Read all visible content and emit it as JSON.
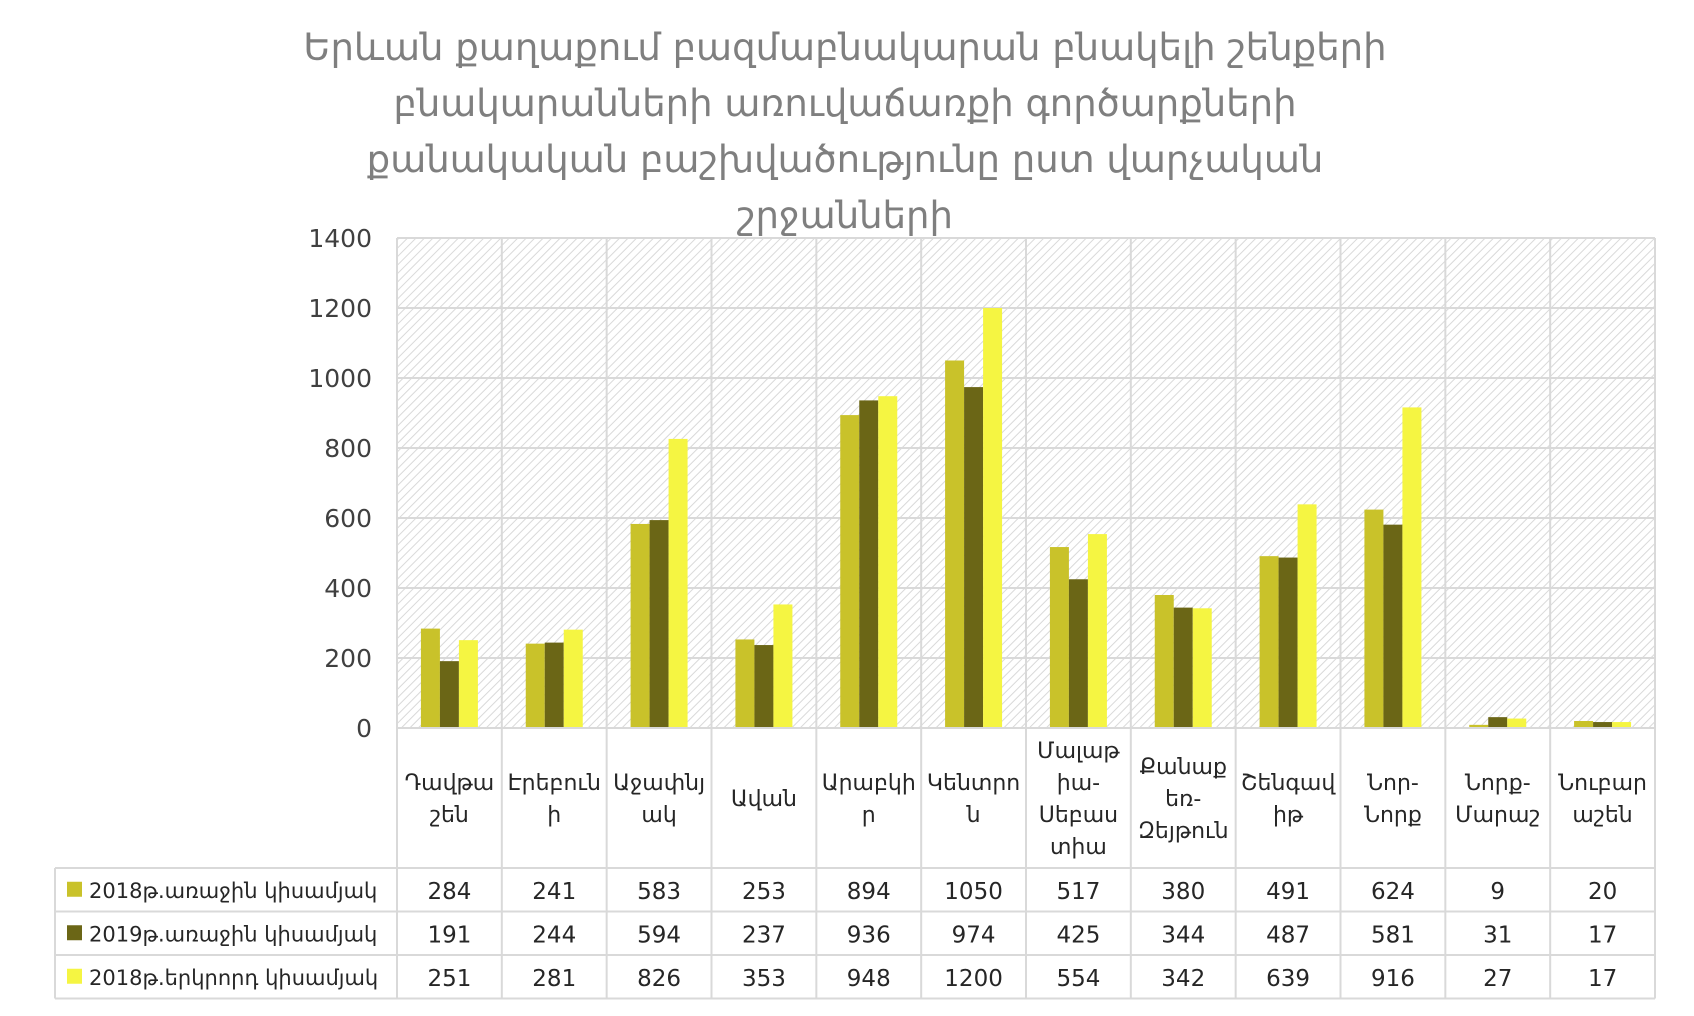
{
  "chart_data": {
    "type": "bar",
    "title": "Երևան քաղաքում բազմաբնակարան բնակելի շենքերի բնակարանների առուվաճառքի գործարքների քանակական բաշխվածությունը ըստ վարչական շրջանների",
    "categories": [
      [
        "Դավթա",
        "շեն"
      ],
      [
        "Էրեբուն",
        "ի"
      ],
      [
        "Աջափնյ",
        "ակ"
      ],
      [
        "Ավան"
      ],
      [
        "Արաբկի",
        "ր"
      ],
      [
        "Կենտրո",
        "ն"
      ],
      [
        "Մալաթ",
        "իա-",
        "Սեբաս",
        "տիա"
      ],
      [
        "Քանաք",
        "եռ-",
        "Զեյթուն"
      ],
      [
        "Շենգավ",
        "իթ"
      ],
      [
        "Նոր-",
        "Նորք"
      ],
      [
        "Նորք-",
        "Մարաշ"
      ],
      [
        "Նուբար",
        "աշեն"
      ]
    ],
    "series": [
      {
        "name": "2018թ.առաջին կիսամյակ",
        "color": "#c9c22a",
        "values": [
          284,
          241,
          583,
          253,
          894,
          1050,
          517,
          380,
          491,
          624,
          9,
          20
        ]
      },
      {
        "name": "2019թ.առաջին կիսամյակ",
        "color": "#6b6616",
        "values": [
          191,
          244,
          594,
          237,
          936,
          974,
          425,
          344,
          487,
          581,
          31,
          17
        ]
      },
      {
        "name": "2018թ.երկրորդ կիսամյակ",
        "color": "#f5f542",
        "values": [
          251,
          281,
          826,
          353,
          948,
          1200,
          554,
          342,
          639,
          916,
          27,
          17
        ]
      }
    ],
    "ylim": [
      0,
      1400
    ],
    "yticks": [
      0,
      200,
      400,
      600,
      800,
      1000,
      1200,
      1400
    ],
    "grid": true,
    "legend": "data-table"
  }
}
